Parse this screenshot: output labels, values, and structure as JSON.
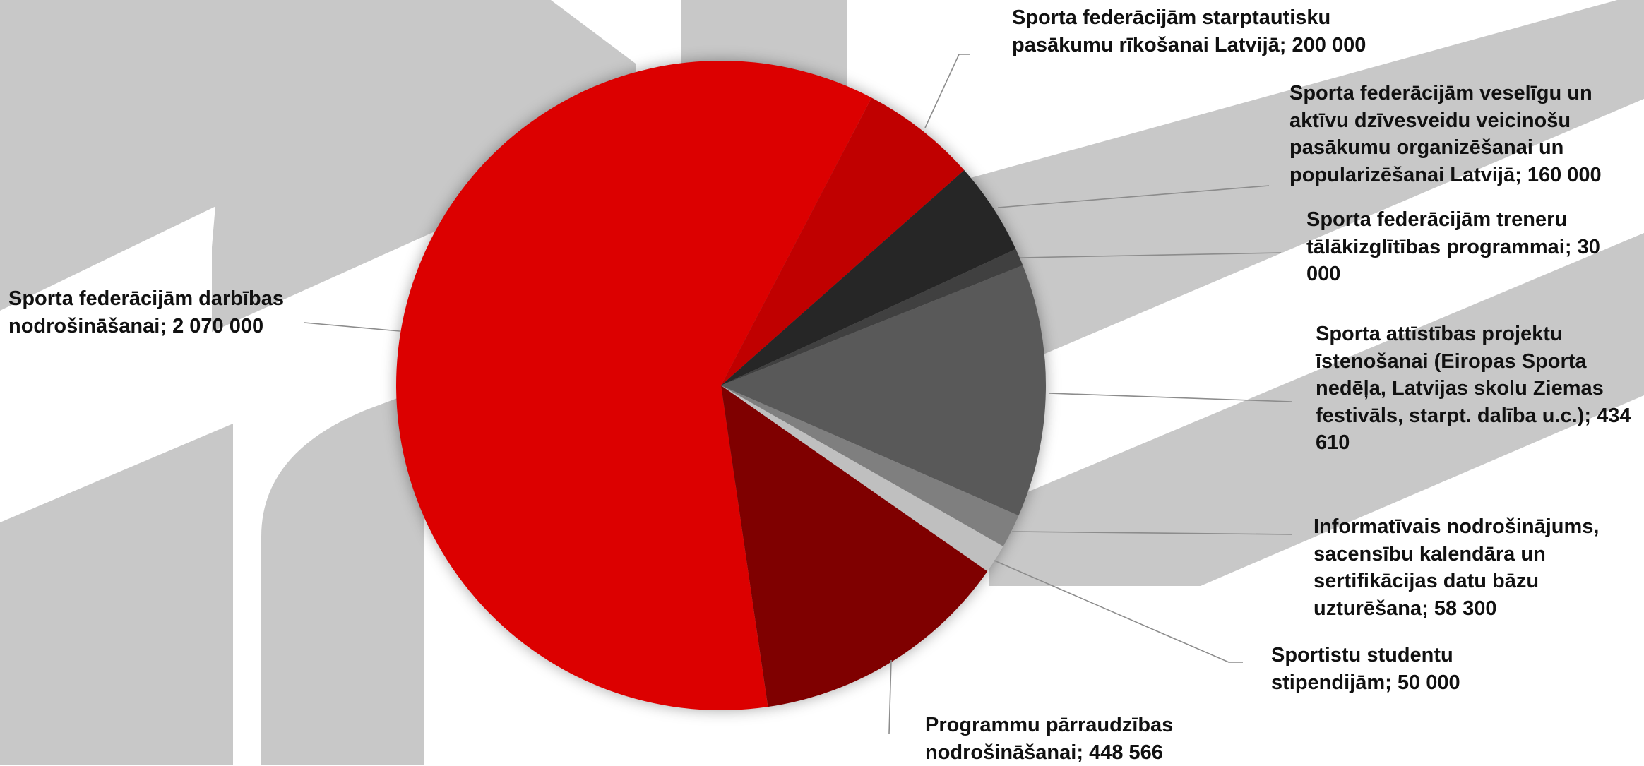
{
  "chart_data": {
    "type": "pie",
    "categories": [
      "Sporta federācijām darbības nodrošināšanai;",
      "Sporta federācijām starptautisku pasākumu rīkošanai Latvijā;",
      "Sporta federācijām veselīgu un aktīvu dzīvesveidu veicinošu pasākumu organizēšanai un popularizēšanai Latvijā;",
      "Sporta federācijām treneru tālākizglītības programmai;",
      "Sporta attīstības projektu īstenošanai (Eiropas Sporta nedēļa, Latvijas skolu Ziemas festivāls, starpt. dalība u.c.);",
      "Informatīvais nodrošinājums, sacensību kalendāra un sertifikācijas datu bāzu uzturēšana;",
      "Sportistu studentu stipendijām;",
      "Programmu pārraudzības nodrošināšanai;"
    ],
    "values": [
      2070000,
      200000,
      160000,
      30000,
      434610,
      58300,
      50000,
      448566
    ],
    "value_labels": [
      "2 070 000",
      "200 000",
      "160 000",
      "30 000",
      "434 610",
      "58 300",
      "50 000",
      "448 566"
    ],
    "colors": [
      "#dc0000",
      "#c00000",
      "#262626",
      "#404040",
      "#595959",
      "#7f7f7f",
      "#bfbfbf",
      "#7f0000"
    ]
  }
}
